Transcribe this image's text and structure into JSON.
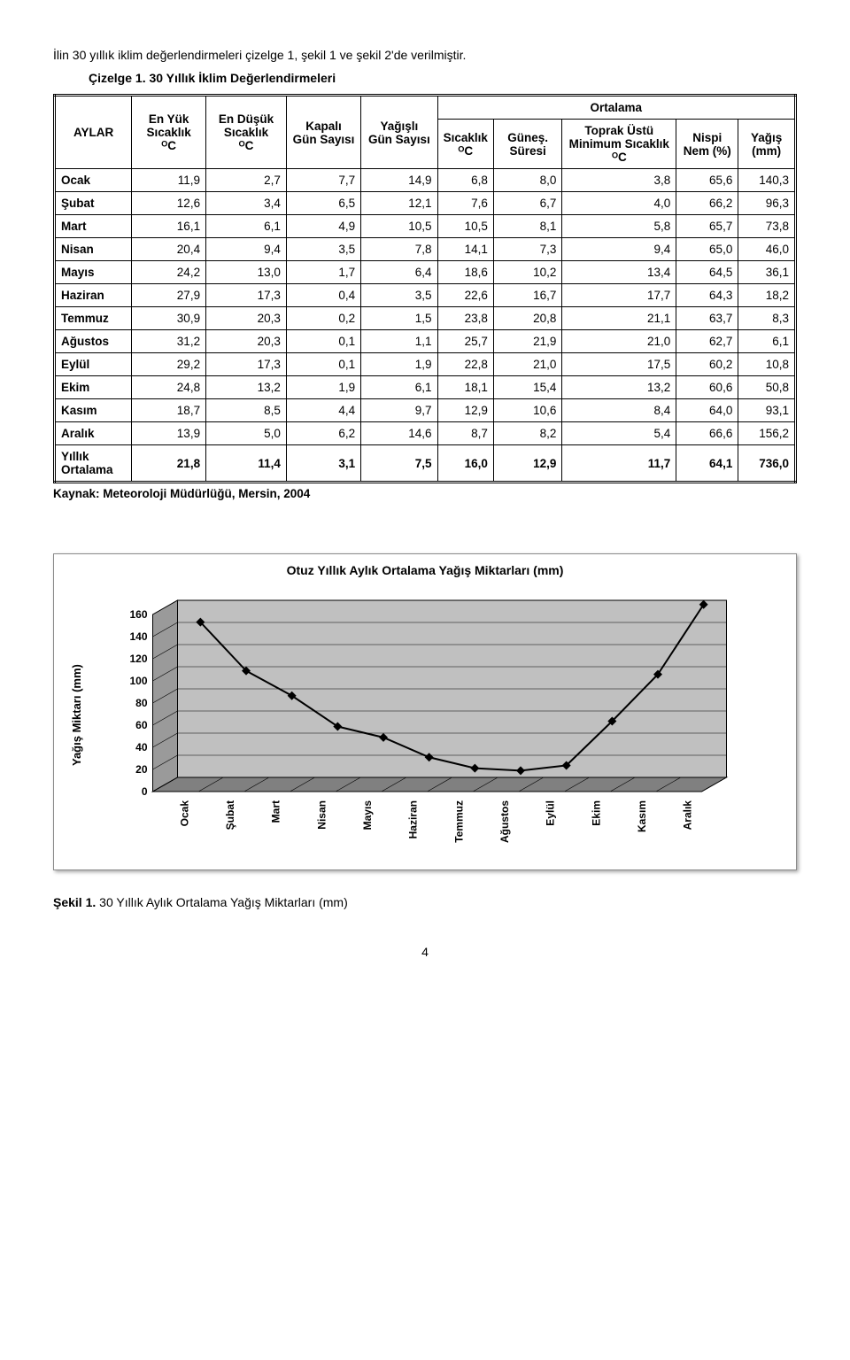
{
  "intro": "İlin 30 yıllık iklim değerlendirmeleri çizelge 1, şekil 1 ve şekil 2'de verilmiştir.",
  "table_caption": "Çizelge 1. 30 Yıllık İklim Değerlendirmeleri",
  "headers": {
    "aylar": "AYLAR",
    "en_yuk": "En Yük Sıcaklık",
    "en_dusuk": "En Düşük Sıcaklık",
    "kapali": "Kapalı Gün Sayısı",
    "yagisli_gun": "Yağışlı Gün Sayısı",
    "ortalama": "Ortalama",
    "sicaklik": "Sıcaklık",
    "gunes": "Güneş. Süresi",
    "toprak": "Toprak Üstü Minimum Sıcaklık",
    "nispi": "Nispi Nem (%)",
    "yagis": "Yağış (mm)",
    "deg": "ᴼC"
  },
  "rows": [
    {
      "m": "Ocak",
      "v": [
        "11,9",
        "2,7",
        "7,7",
        "14,9",
        "6,8",
        "8,0",
        "3,8",
        "65,6",
        "140,3"
      ]
    },
    {
      "m": "Şubat",
      "v": [
        "12,6",
        "3,4",
        "6,5",
        "12,1",
        "7,6",
        "6,7",
        "4,0",
        "66,2",
        "96,3"
      ]
    },
    {
      "m": "Mart",
      "v": [
        "16,1",
        "6,1",
        "4,9",
        "10,5",
        "10,5",
        "8,1",
        "5,8",
        "65,7",
        "73,8"
      ]
    },
    {
      "m": "Nisan",
      "v": [
        "20,4",
        "9,4",
        "3,5",
        "7,8",
        "14,1",
        "7,3",
        "9,4",
        "65,0",
        "46,0"
      ]
    },
    {
      "m": "Mayıs",
      "v": [
        "24,2",
        "13,0",
        "1,7",
        "6,4",
        "18,6",
        "10,2",
        "13,4",
        "64,5",
        "36,1"
      ]
    },
    {
      "m": "Haziran",
      "v": [
        "27,9",
        "17,3",
        "0,4",
        "3,5",
        "22,6",
        "16,7",
        "17,7",
        "64,3",
        "18,2"
      ]
    },
    {
      "m": "Temmuz",
      "v": [
        "30,9",
        "20,3",
        "0,2",
        "1,5",
        "23,8",
        "20,8",
        "21,1",
        "63,7",
        "8,3"
      ]
    },
    {
      "m": "Ağustos",
      "v": [
        "31,2",
        "20,3",
        "0,1",
        "1,1",
        "25,7",
        "21,9",
        "21,0",
        "62,7",
        "6,1"
      ]
    },
    {
      "m": "Eylül",
      "v": [
        "29,2",
        "17,3",
        "0,1",
        "1,9",
        "22,8",
        "21,0",
        "17,5",
        "60,2",
        "10,8"
      ]
    },
    {
      "m": "Ekim",
      "v": [
        "24,8",
        "13,2",
        "1,9",
        "6,1",
        "18,1",
        "15,4",
        "13,2",
        "60,6",
        "50,8"
      ]
    },
    {
      "m": "Kasım",
      "v": [
        "18,7",
        "8,5",
        "4,4",
        "9,7",
        "12,9",
        "10,6",
        "8,4",
        "64,0",
        "93,1"
      ]
    },
    {
      "m": "Aralık",
      "v": [
        "13,9",
        "5,0",
        "6,2",
        "14,6",
        "8,7",
        "8,2",
        "5,4",
        "66,6",
        "156,2"
      ]
    }
  ],
  "avg_row": {
    "m": "Yıllık Ortalama",
    "v": [
      "21,8",
      "11,4",
      "3,1",
      "7,5",
      "16,0",
      "12,9",
      "11,7",
      "64,1",
      "736,0"
    ]
  },
  "source": "Kaynak: Meteoroloji Müdürlüğü, Mersin, 2004",
  "chart": {
    "title": "Otuz Yıllık Aylık Ortalama Yağış Miktarları (mm)",
    "ylabel": "Yağış Miktarı (mm)",
    "categories": [
      "Ocak",
      "Şubat",
      "Mart",
      "Nisan",
      "Mayıs",
      "Haziran",
      "Temmuz",
      "Ağustos",
      "Eylül",
      "Ekim",
      "Kasım",
      "Aralık"
    ],
    "values": [
      140.3,
      96.3,
      73.8,
      46.0,
      36.1,
      18.2,
      8.3,
      6.1,
      10.8,
      50.8,
      93.1,
      156.2
    ],
    "ylim": [
      0,
      160
    ],
    "ytick_step": 20,
    "yticks": [
      "0",
      "20",
      "40",
      "60",
      "80",
      "100",
      "120",
      "140",
      "160"
    ],
    "face_fill": "#c0c0c0",
    "floor_fill": "#808080",
    "wall_fill": "#9a9a9a",
    "grid_color": "#000000",
    "line_color": "#000000",
    "background": "#ffffff",
    "title_fontsize": 14,
    "label_fontsize": 13,
    "line_width": 2,
    "marker": "diamond",
    "marker_size": 5
  },
  "figure_caption": "Şekil 1. 30 Yıllık Aylık Ortalama Yağış Miktarları (mm)",
  "page_number": "4"
}
